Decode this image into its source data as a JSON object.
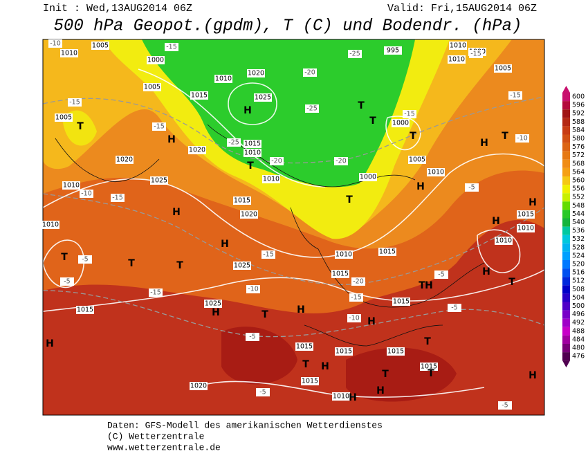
{
  "header": {
    "init": "Init : Wed,13AUG2014 06Z",
    "valid": "Valid: Fri,15AUG2014 06Z",
    "title": "500 hPa Geopot.(gpdm), T (C) und Bodendr. (hPa)"
  },
  "legend": {
    "levels": [
      600,
      596,
      592,
      588,
      584,
      580,
      576,
      572,
      568,
      564,
      560,
      556,
      552,
      548,
      544,
      540,
      536,
      532,
      528,
      524,
      520,
      516,
      512,
      508,
      504,
      500,
      496,
      492,
      488,
      484,
      480,
      476
    ],
    "colors": [
      "#c8106e",
      "#b40a3c",
      "#a01414",
      "#b42814",
      "#c83c14",
      "#d25014",
      "#dc6414",
      "#e67814",
      "#f08c14",
      "#f5a014",
      "#f5c814",
      "#f0f000",
      "#c8f000",
      "#64dc00",
      "#28c828",
      "#14b43c",
      "#00c8a0",
      "#00c8dc",
      "#00b4f0",
      "#00a0ff",
      "#0078ff",
      "#0050f0",
      "#0028dc",
      "#0000c8",
      "#2800c8",
      "#5000c8",
      "#7800c8",
      "#a000c8",
      "#c800c8",
      "#a000a0",
      "#780078",
      "#500050"
    ]
  },
  "map": {
    "isobar_labels": [
      "1010",
      "1005",
      "1000",
      "1005",
      "1010",
      "1020",
      "1025",
      "1015",
      "1015",
      "1010",
      "1020",
      "1010",
      "1020",
      "1025",
      "1010",
      "1015",
      "1020",
      "1025",
      "995",
      "1010",
      "1000",
      "1005",
      "1000",
      "1005",
      "1010",
      "1000",
      "1015",
      "1010",
      "1015",
      "1015",
      "1010",
      "1015",
      "1010",
      "1025",
      "1015",
      "1015",
      "1015",
      "1015",
      "1015",
      "1015",
      "1010",
      "1020",
      "1010",
      "1005",
      "1010"
    ],
    "temperature_labels": [
      "-10",
      "-15",
      "-25",
      "-20",
      "-25",
      "-25",
      "-20",
      "-20",
      "-15",
      "-10",
      "-5",
      "-15",
      "-15",
      "-15",
      "-15",
      "-15",
      "-10",
      "-5",
      "-5",
      "-15",
      "-10",
      "-20",
      "-15",
      "-10",
      "-15",
      "-5",
      "-5",
      "-5",
      "-5",
      "-5"
    ],
    "highs": [
      "H",
      "H",
      "H",
      "H",
      "H",
      "H",
      "H",
      "H",
      "H",
      "H",
      "H",
      "H",
      "H",
      "H",
      "H",
      "H",
      "H",
      "H"
    ],
    "lows": [
      "T",
      "T",
      "T",
      "T",
      "T",
      "T",
      "T",
      "T",
      "T",
      "T",
      "T",
      "T",
      "T",
      "T",
      "T",
      "T",
      "T"
    ]
  },
  "footer": {
    "source": "Daten: GFS-Modell des amerikanischen Wetterdienstes",
    "copyright": "(C) Wetterzentrale",
    "url": "www.wetterzentrale.de"
  }
}
